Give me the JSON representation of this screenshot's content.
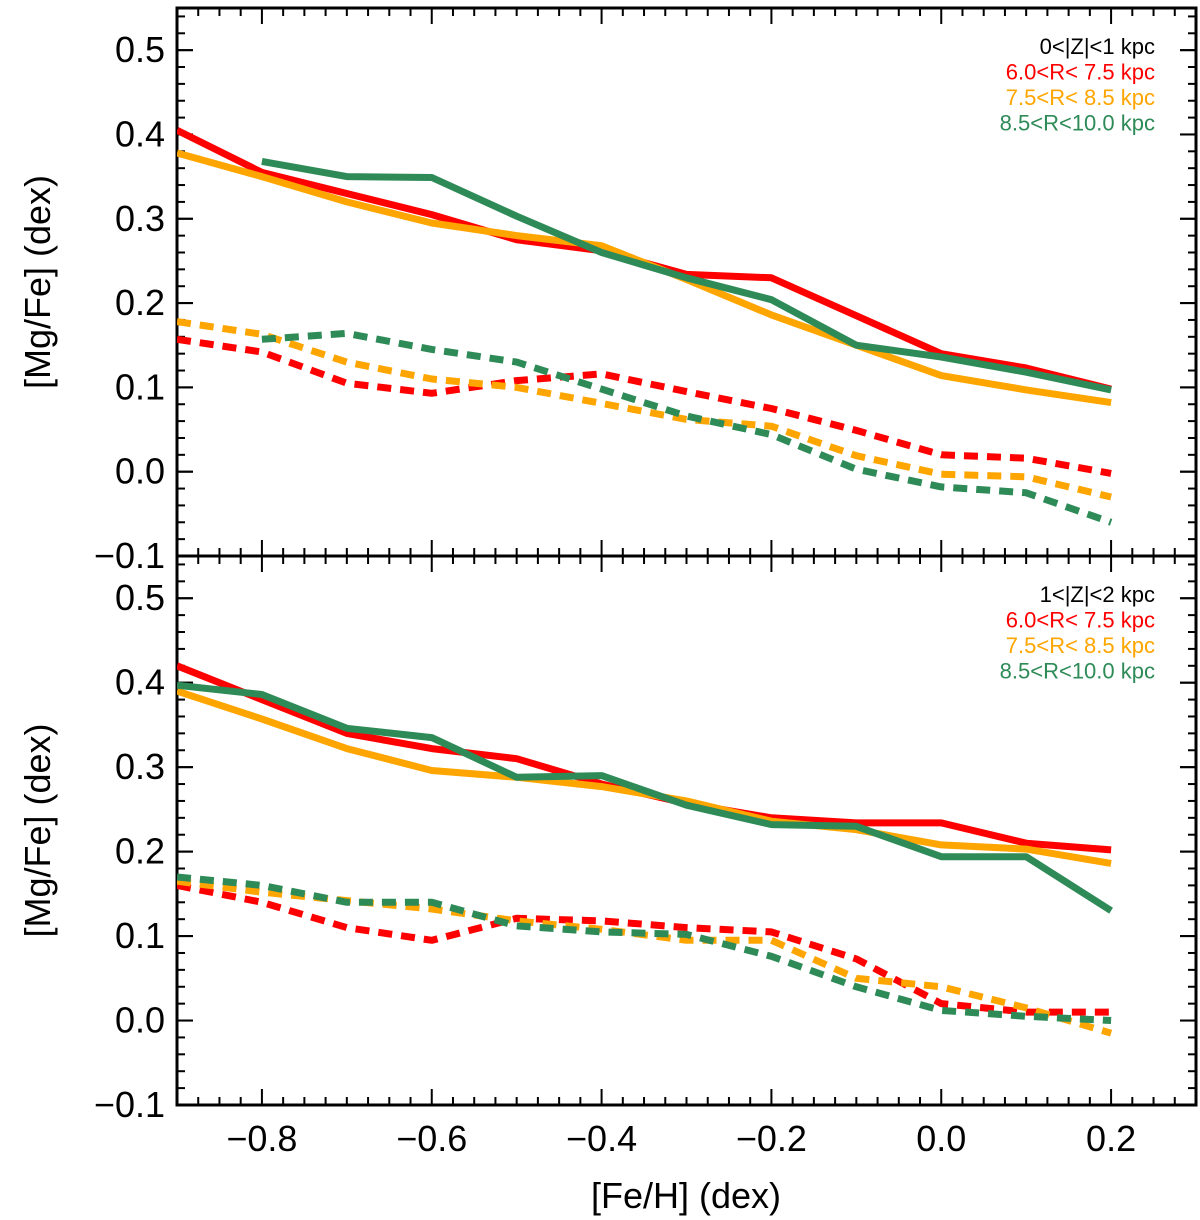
{
  "chart_data": [
    {
      "type": "line",
      "panel": "top",
      "xlabel": "",
      "ylabel": "[Mg/Fe] (dex)",
      "xlim": [
        -0.9,
        0.3
      ],
      "ylim": [
        -0.1,
        0.55
      ],
      "xticks": [
        -0.8,
        -0.6,
        -0.4,
        -0.2,
        0.0,
        0.2
      ],
      "xtick_labels": [
        "−0.8",
        "−0.6",
        "−0.4",
        "−0.2",
        "0.0",
        "0.2"
      ],
      "yticks": [
        0.5,
        0.4,
        0.3,
        0.2,
        0.1,
        0.0,
        -0.1
      ],
      "ytick_labels": [
        "0.5",
        "0.4",
        "0.3",
        "0.2",
        "0.1",
        "0.0",
        "−0.1"
      ],
      "legend_title": "0<|Z|<1 kpc",
      "legend_position": "top-right",
      "series": [
        {
          "name": "6.0<R< 7.5 kpc",
          "color": "#ff0000",
          "style": "solid",
          "x": [
            -0.9,
            -0.8,
            -0.7,
            -0.6,
            -0.5,
            -0.4,
            -0.3,
            -0.2,
            -0.1,
            0.0,
            0.1,
            0.2
          ],
          "values": [
            0.405,
            0.355,
            0.33,
            0.305,
            0.275,
            0.262,
            0.234,
            0.23,
            0.185,
            0.14,
            0.123,
            0.098
          ]
        },
        {
          "name": "7.5<R< 8.5 kpc",
          "color": "#ffa500",
          "style": "solid",
          "x": [
            -0.9,
            -0.8,
            -0.7,
            -0.6,
            -0.5,
            -0.4,
            -0.3,
            -0.2,
            -0.1,
            0.0,
            0.1,
            0.2
          ],
          "values": [
            0.378,
            0.35,
            0.32,
            0.295,
            0.28,
            0.268,
            0.228,
            0.186,
            0.15,
            0.114,
            0.097,
            0.082
          ]
        },
        {
          "name": "8.5<R<10.0 kpc",
          "color": "#2e8b57",
          "style": "solid",
          "x": [
            -0.8,
            -0.7,
            -0.6,
            -0.5,
            -0.4,
            -0.3,
            -0.2,
            -0.1,
            0.0,
            0.1,
            0.2
          ],
          "values": [
            0.368,
            0.35,
            0.349,
            0.303,
            0.26,
            0.23,
            0.204,
            0.15,
            0.136,
            0.118,
            0.097
          ]
        },
        {
          "name": "6.0<R< 7.5 kpc (dashed)",
          "color": "#ff0000",
          "style": "dashed",
          "x": [
            -0.9,
            -0.8,
            -0.7,
            -0.6,
            -0.5,
            -0.4,
            -0.3,
            -0.2,
            -0.1,
            0.0,
            0.1,
            0.2
          ],
          "values": [
            0.157,
            0.142,
            0.105,
            0.093,
            0.108,
            0.116,
            0.095,
            0.075,
            0.049,
            0.02,
            0.016,
            -0.002
          ]
        },
        {
          "name": "7.5<R< 8.5 kpc (dashed)",
          "color": "#ffa500",
          "style": "dashed",
          "x": [
            -0.9,
            -0.8,
            -0.7,
            -0.6,
            -0.5,
            -0.4,
            -0.3,
            -0.2,
            -0.1,
            0.0,
            0.1,
            0.2
          ],
          "values": [
            0.178,
            0.163,
            0.13,
            0.11,
            0.1,
            0.081,
            0.062,
            0.054,
            0.019,
            -0.003,
            -0.006,
            -0.03
          ]
        },
        {
          "name": "8.5<R<10.0 kpc (dashed)",
          "color": "#2e8b57",
          "style": "dashed",
          "x": [
            -0.8,
            -0.7,
            -0.6,
            -0.5,
            -0.4,
            -0.3,
            -0.2,
            -0.1,
            0.0,
            0.1,
            0.2
          ],
          "values": [
            0.157,
            0.164,
            0.145,
            0.13,
            0.098,
            0.066,
            0.044,
            0.003,
            -0.018,
            -0.025,
            -0.06
          ]
        }
      ]
    },
    {
      "type": "line",
      "panel": "bottom",
      "xlabel": "[Fe/H] (dex)",
      "ylabel": "[Mg/Fe] (dex)",
      "xlim": [
        -0.9,
        0.3
      ],
      "ylim": [
        -0.1,
        0.55
      ],
      "xticks": [
        -0.8,
        -0.6,
        -0.4,
        -0.2,
        0.0,
        0.2
      ],
      "xtick_labels": [
        "−0.8",
        "−0.6",
        "−0.4",
        "−0.2",
        "0.0",
        "0.2"
      ],
      "yticks": [
        0.5,
        0.4,
        0.3,
        0.2,
        0.1,
        0.0,
        -0.1
      ],
      "ytick_labels": [
        "0.5",
        "0.4",
        "0.3",
        "0.2",
        "0.1",
        "0.0",
        "−0.1"
      ],
      "legend_title": "1<|Z|<2 kpc",
      "legend_position": "top-right",
      "series": [
        {
          "name": "6.0<R< 7.5 kpc",
          "color": "#ff0000",
          "style": "solid",
          "x": [
            -0.9,
            -0.8,
            -0.7,
            -0.6,
            -0.5,
            -0.4,
            -0.3,
            -0.2,
            -0.1,
            0.0,
            0.1,
            0.2
          ],
          "values": [
            0.42,
            0.38,
            0.34,
            0.322,
            0.31,
            0.28,
            0.257,
            0.24,
            0.234,
            0.234,
            0.21,
            0.202
          ]
        },
        {
          "name": "7.5<R< 8.5 kpc",
          "color": "#ffa500",
          "style": "solid",
          "x": [
            -0.9,
            -0.8,
            -0.7,
            -0.6,
            -0.5,
            -0.4,
            -0.3,
            -0.2,
            -0.1,
            0.0,
            0.1,
            0.2
          ],
          "values": [
            0.39,
            0.357,
            0.322,
            0.296,
            0.288,
            0.277,
            0.26,
            0.236,
            0.226,
            0.208,
            0.203,
            0.186
          ]
        },
        {
          "name": "8.5<R<10.0 kpc",
          "color": "#2e8b57",
          "style": "solid",
          "x": [
            -0.9,
            -0.8,
            -0.7,
            -0.6,
            -0.5,
            -0.4,
            -0.3,
            -0.2,
            -0.1,
            0.0,
            0.1,
            0.2
          ],
          "values": [
            0.397,
            0.386,
            0.346,
            0.335,
            0.288,
            0.29,
            0.255,
            0.232,
            0.23,
            0.194,
            0.194,
            0.13
          ]
        },
        {
          "name": "6.0<R< 7.5 kpc (dashed)",
          "color": "#ff0000",
          "style": "dashed",
          "x": [
            -0.9,
            -0.8,
            -0.7,
            -0.6,
            -0.5,
            -0.4,
            -0.3,
            -0.2,
            -0.1,
            0.0,
            0.1,
            0.2
          ],
          "values": [
            0.16,
            0.14,
            0.11,
            0.095,
            0.121,
            0.118,
            0.11,
            0.105,
            0.073,
            0.02,
            0.01,
            0.01
          ]
        },
        {
          "name": "7.5<R< 8.5 kpc (dashed)",
          "color": "#ffa500",
          "style": "dashed",
          "x": [
            -0.9,
            -0.8,
            -0.7,
            -0.6,
            -0.5,
            -0.4,
            -0.3,
            -0.2,
            -0.1,
            0.0,
            0.1,
            0.2
          ],
          "values": [
            0.165,
            0.152,
            0.142,
            0.132,
            0.118,
            0.108,
            0.095,
            0.095,
            0.05,
            0.04,
            0.015,
            -0.015
          ]
        },
        {
          "name": "8.5<R<10.0 kpc (dashed)",
          "color": "#2e8b57",
          "style": "dashed",
          "x": [
            -0.9,
            -0.8,
            -0.7,
            -0.6,
            -0.5,
            -0.4,
            -0.3,
            -0.2,
            -0.1,
            0.0,
            0.1,
            0.2
          ],
          "values": [
            0.17,
            0.16,
            0.14,
            0.14,
            0.112,
            0.105,
            0.102,
            0.076,
            0.04,
            0.012,
            0.005,
            0.0
          ]
        }
      ]
    }
  ]
}
